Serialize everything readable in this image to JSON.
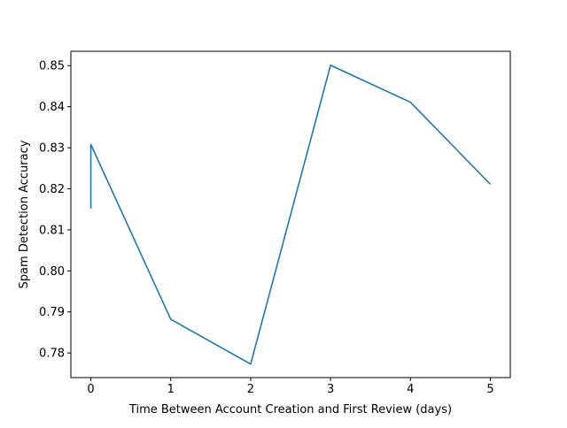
{
  "chart_data": {
    "type": "line",
    "title": "",
    "xlabel": "Time Between Account Creation and First Review (days)",
    "ylabel": "Spam Detection Accuracy",
    "xlim": [
      -0.25,
      5.25
    ],
    "ylim": [
      0.774,
      0.8535
    ],
    "x_ticks": [
      0,
      1,
      2,
      3,
      4,
      5
    ],
    "x_tick_labels": [
      "0",
      "1",
      "2",
      "3",
      "4",
      "5"
    ],
    "y_ticks": [
      0.78,
      0.79,
      0.8,
      0.81,
      0.82,
      0.83,
      0.84,
      0.85
    ],
    "y_tick_labels": [
      "0.78",
      "0.79",
      "0.80",
      "0.81",
      "0.82",
      "0.83",
      "0.84",
      "0.85"
    ],
    "grid": false,
    "series": [
      {
        "color": "#1f77b4",
        "points": [
          {
            "x": 0,
            "y": 0.8152
          },
          {
            "x": 0,
            "y": 0.8308
          },
          {
            "x": 1,
            "y": 0.7882
          },
          {
            "x": 2,
            "y": 0.7773
          },
          {
            "x": 3,
            "y": 0.8501
          },
          {
            "x": 4,
            "y": 0.8411
          },
          {
            "x": 5,
            "y": 0.8211
          }
        ]
      }
    ]
  }
}
